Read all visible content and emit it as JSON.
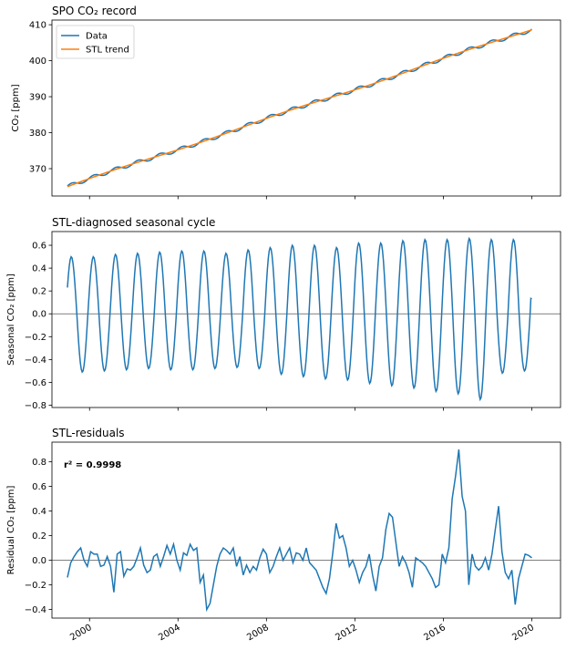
{
  "chart_data": [
    {
      "type": "line",
      "title": "SPO CO₂ record",
      "xlabel": "",
      "ylabel": "CO₂ [ppm]",
      "xlim": [
        1998.3,
        2021.3
      ],
      "ylim": [
        362.4,
        411.3
      ],
      "yticks": [
        370,
        380,
        390,
        400,
        410
      ],
      "grid": false,
      "legend": "top-left",
      "series": [
        {
          "name": "Data",
          "color": "#1f77b4",
          "trend_start": 365.0,
          "trend_end": 408.8,
          "seasonal_amplitude": 0.55,
          "t_start": 1999.0,
          "t_end": 2020.0
        },
        {
          "name": "STL trend",
          "color": "#ff7f0e",
          "trend_start": 365.0,
          "trend_end": 408.8,
          "t_start": 1999.0,
          "t_end": 2020.0
        }
      ]
    },
    {
      "type": "line",
      "title": "STL-diagnosed seasonal cycle",
      "xlabel": "",
      "ylabel": "Seasonal CO₂ [ppm]",
      "xlim": [
        1998.3,
        2021.3
      ],
      "ylim": [
        -0.82,
        0.72
      ],
      "yticks": [
        -0.8,
        -0.6,
        -0.4,
        -0.2,
        0.0,
        0.2,
        0.4,
        0.6
      ],
      "ytick_labels": [
        "−0.8",
        "−0.6",
        "−0.4",
        "−0.2",
        "0.0",
        "0.2",
        "0.4",
        "0.6"
      ],
      "zero_line": true,
      "grid": false,
      "series": [
        {
          "color": "#1f77b4",
          "cycle_max": [
            0.5,
            0.5,
            0.52,
            0.53,
            0.54,
            0.55,
            0.55,
            0.53,
            0.56,
            0.58,
            0.6,
            0.6,
            0.58,
            0.62,
            0.62,
            0.64,
            0.65,
            0.65,
            0.66,
            0.65,
            0.65
          ],
          "cycle_min": [
            -0.51,
            -0.5,
            -0.49,
            -0.48,
            -0.49,
            -0.49,
            -0.48,
            -0.47,
            -0.48,
            -0.53,
            -0.55,
            -0.57,
            -0.58,
            -0.61,
            -0.63,
            -0.65,
            -0.68,
            -0.7,
            -0.75,
            -0.52,
            -0.5
          ],
          "t_start": 1999.0,
          "t_end": 2020.0,
          "start_value": 0.23,
          "end_value": 0.13
        }
      ]
    },
    {
      "type": "line",
      "title": "STL-residuals",
      "xlabel": "",
      "ylabel": "Residual CO₂ [ppm]",
      "xlim": [
        1998.3,
        2021.3
      ],
      "ylim": [
        -0.47,
        0.96
      ],
      "yticks": [
        -0.4,
        -0.2,
        0.0,
        0.2,
        0.4,
        0.6,
        0.8
      ],
      "ytick_labels": [
        "−0.4",
        "−0.2",
        "0.0",
        "0.2",
        "0.4",
        "0.6",
        "0.8"
      ],
      "xticks": [
        2000,
        2004,
        2008,
        2012,
        2016,
        2020
      ],
      "xtick_labels": [
        "2000",
        "2004",
        "2008",
        "2012",
        "2016",
        "2020"
      ],
      "zero_line": true,
      "grid": false,
      "annotation": "r² = 0.9998",
      "series": [
        {
          "color": "#1f77b4",
          "x": [
            1999.0,
            1999.15,
            1999.3,
            1999.45,
            1999.6,
            1999.75,
            1999.9,
            2000.05,
            2000.2,
            2000.35,
            2000.5,
            2000.65,
            2000.8,
            2000.95,
            2001.1,
            2001.25,
            2001.4,
            2001.55,
            2001.7,
            2001.85,
            2002.0,
            2002.15,
            2002.3,
            2002.45,
            2002.6,
            2002.75,
            2002.9,
            2003.05,
            2003.2,
            2003.35,
            2003.5,
            2003.65,
            2003.8,
            2003.95,
            2004.1,
            2004.25,
            2004.4,
            2004.55,
            2004.7,
            2004.85,
            2005.0,
            2005.15,
            2005.3,
            2005.45,
            2005.6,
            2005.75,
            2005.9,
            2006.05,
            2006.2,
            2006.35,
            2006.5,
            2006.65,
            2006.8,
            2006.95,
            2007.1,
            2007.25,
            2007.4,
            2007.55,
            2007.7,
            2007.85,
            2008.0,
            2008.15,
            2008.3,
            2008.45,
            2008.6,
            2008.75,
            2008.9,
            2009.05,
            2009.2,
            2009.35,
            2009.5,
            2009.65,
            2009.8,
            2009.95,
            2010.1,
            2010.25,
            2010.4,
            2010.55,
            2010.7,
            2010.85,
            2011.0,
            2011.15,
            2011.3,
            2011.45,
            2011.6,
            2011.75,
            2011.9,
            2012.05,
            2012.2,
            2012.35,
            2012.5,
            2012.65,
            2012.8,
            2012.95,
            2013.1,
            2013.25,
            2013.4,
            2013.55,
            2013.7,
            2013.85,
            2014.0,
            2014.15,
            2014.3,
            2014.45,
            2014.6,
            2014.75,
            2014.9,
            2015.05,
            2015.2,
            2015.35,
            2015.5,
            2015.65,
            2015.8,
            2015.95,
            2016.1,
            2016.25,
            2016.4,
            2016.55,
            2016.7,
            2016.85,
            2017.0,
            2017.15,
            2017.3,
            2017.45,
            2017.6,
            2017.75,
            2017.9,
            2018.05,
            2018.2,
            2018.35,
            2018.5,
            2018.65,
            2018.8,
            2018.95,
            2019.1,
            2019.25,
            2019.4,
            2019.55,
            2019.7,
            2019.85,
            2020.0
          ],
          "y": [
            -0.14,
            -0.02,
            0.03,
            0.07,
            0.1,
            0.0,
            -0.05,
            0.07,
            0.05,
            0.05,
            -0.05,
            -0.04,
            0.03,
            -0.05,
            -0.26,
            0.05,
            0.07,
            -0.13,
            -0.07,
            -0.08,
            -0.05,
            0.02,
            0.1,
            -0.04,
            -0.1,
            -0.08,
            0.03,
            0.05,
            -0.05,
            0.03,
            0.12,
            0.05,
            0.13,
            0.0,
            -0.08,
            0.06,
            0.04,
            0.13,
            0.08,
            0.1,
            -0.18,
            -0.12,
            -0.4,
            -0.35,
            -0.2,
            -0.05,
            0.05,
            0.1,
            0.08,
            0.05,
            0.1,
            -0.05,
            0.03,
            -0.12,
            -0.04,
            -0.1,
            -0.05,
            -0.08,
            0.02,
            0.09,
            0.05,
            -0.1,
            -0.05,
            0.03,
            0.1,
            0.0,
            0.05,
            0.1,
            -0.02,
            0.06,
            0.05,
            0.0,
            0.1,
            -0.02,
            -0.05,
            -0.08,
            -0.15,
            -0.22,
            -0.27,
            -0.15,
            0.06,
            0.3,
            0.18,
            0.2,
            0.1,
            -0.05,
            0.0,
            -0.08,
            -0.18,
            -0.1,
            -0.05,
            0.05,
            -0.12,
            -0.25,
            -0.05,
            0.02,
            0.25,
            0.38,
            0.35,
            0.15,
            -0.05,
            0.03,
            -0.02,
            -0.1,
            -0.22,
            0.02,
            0.0,
            -0.02,
            -0.05,
            -0.1,
            -0.15,
            -0.22,
            -0.2,
            0.05,
            -0.02,
            0.1,
            0.5,
            0.68,
            0.9,
            0.52,
            0.4,
            -0.2,
            0.05,
            -0.05,
            -0.08,
            -0.05,
            0.02,
            -0.08,
            0.05,
            0.25,
            0.44,
            0.07,
            -0.1,
            -0.15,
            -0.08,
            -0.36,
            -0.15,
            -0.05,
            0.05,
            0.04,
            0.02
          ]
        }
      ]
    }
  ]
}
